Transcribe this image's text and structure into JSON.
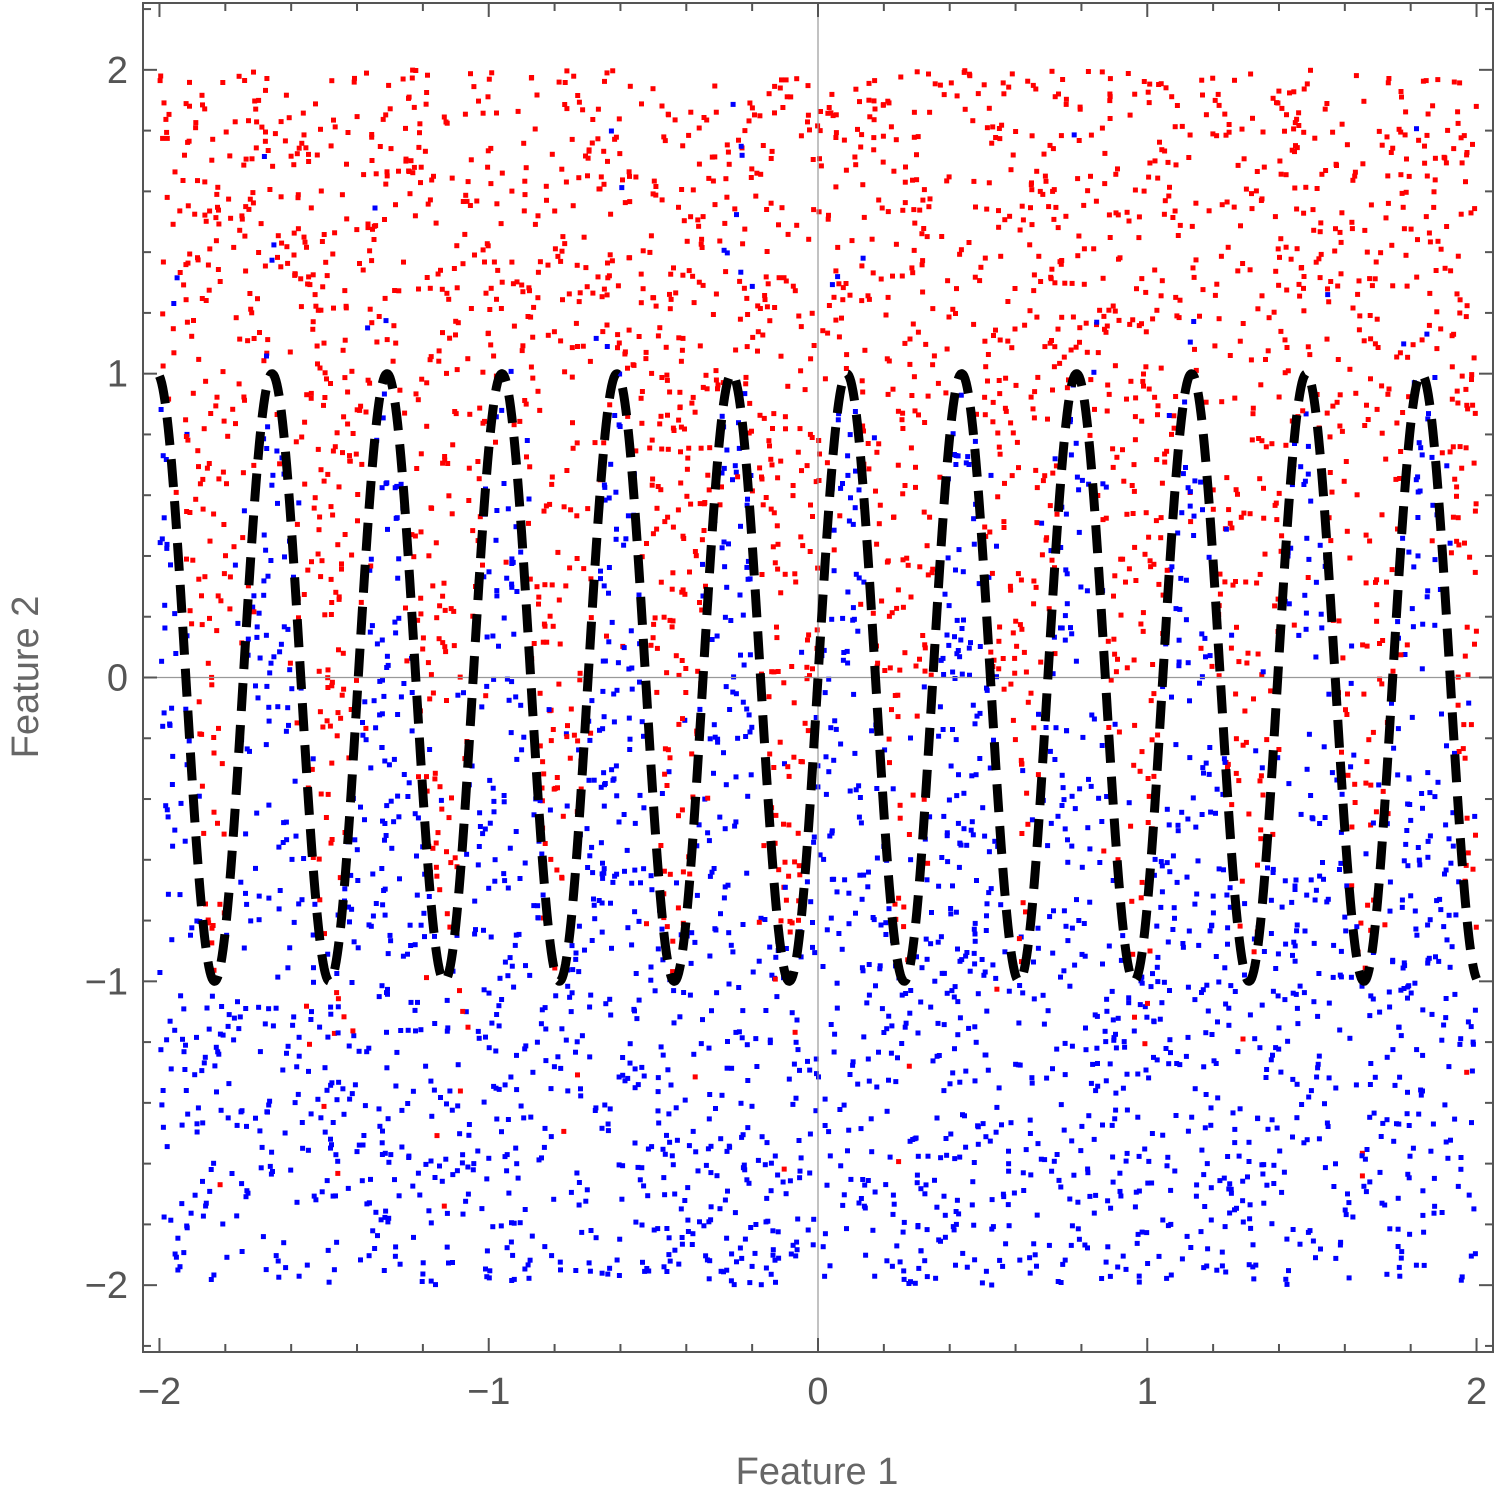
{
  "chart_data": {
    "type": "scatter",
    "title": "",
    "xlabel": "Feature 1",
    "ylabel": "Feature 2",
    "xlim": [
      -2.05,
      2.05
    ],
    "ylim": [
      -2.22,
      2.22
    ],
    "x_major_ticks": [
      -2,
      -1,
      0,
      1,
      2
    ],
    "y_major_ticks": [
      -2,
      -1,
      0,
      1,
      2
    ],
    "x_tick_labels": [
      "−2",
      "−1",
      "0",
      "1",
      "2"
    ],
    "y_tick_labels": [
      "−2",
      "−1",
      "0",
      "1",
      "2"
    ],
    "minor_tick_step": 0.2,
    "grid": false,
    "axes_through_origin": true,
    "colors": {
      "class_above": "#ff0000",
      "class_below": "#0000ff",
      "boundary": "#000000",
      "frame": "#555555",
      "origin_axes": "#999999"
    },
    "series": [
      {
        "kind": "points",
        "color": "#ff0000",
        "region": "above boundary",
        "x_range": [
          -2,
          2
        ],
        "y_range": [
          -2,
          2
        ],
        "approx_count": 2500,
        "label_noise": 0.1
      },
      {
        "kind": "points",
        "color": "#0000ff",
        "region": "below boundary",
        "x_range": [
          -2,
          2
        ],
        "y_range": [
          -2,
          2
        ],
        "approx_count": 2500,
        "label_noise": 0.1
      },
      {
        "kind": "curve",
        "style": "dashed",
        "color": "#000000",
        "function": "y = sin(18 x)",
        "x_range": [
          -2,
          2
        ]
      }
    ]
  }
}
